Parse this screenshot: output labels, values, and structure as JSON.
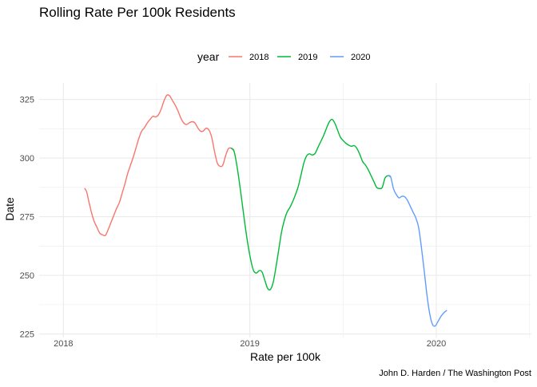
{
  "chart_data": {
    "type": "line",
    "title": "Rolling Rate Per 100k Residents",
    "xlabel": "Rate per 100k",
    "ylabel": "Date",
    "caption": "John D. Harden / The Washington Post",
    "legend_title": "year",
    "legend_position": "top",
    "grid": true,
    "xlim": [
      2017.87,
      2020.51
    ],
    "ylim": [
      223.5,
      332
    ],
    "x_ticks": [
      2018,
      2019,
      2020
    ],
    "x_tick_labels": [
      "2018",
      "2019",
      "2020"
    ],
    "y_ticks": [
      225,
      250,
      275,
      300,
      325
    ],
    "y_tick_labels": [
      "225",
      "250",
      "275",
      "300",
      "325"
    ],
    "colors": {
      "2018": "#F8766D",
      "2019": "#00BA38",
      "2020": "#619CFF",
      "grid": "#ebebeb"
    },
    "series": [
      {
        "name": "2018",
        "color": "#F8766D",
        "points": [
          [
            2018.115,
            287.0
          ],
          [
            2018.125,
            285.5
          ],
          [
            2018.135,
            282.0
          ],
          [
            2018.15,
            277.0
          ],
          [
            2018.165,
            273.0
          ],
          [
            2018.18,
            270.5
          ],
          [
            2018.195,
            268.0
          ],
          [
            2018.21,
            267.3
          ],
          [
            2018.225,
            267.0
          ],
          [
            2018.24,
            269.5
          ],
          [
            2018.255,
            272.5
          ],
          [
            2018.27,
            275.5
          ],
          [
            2018.285,
            278.5
          ],
          [
            2018.3,
            281.0
          ],
          [
            2018.315,
            285.0
          ],
          [
            2018.33,
            289.0
          ],
          [
            2018.345,
            293.5
          ],
          [
            2018.36,
            297.0
          ],
          [
            2018.375,
            300.5
          ],
          [
            2018.39,
            304.5
          ],
          [
            2018.405,
            308.5
          ],
          [
            2018.42,
            311.5
          ],
          [
            2018.435,
            313.0
          ],
          [
            2018.45,
            315.0
          ],
          [
            2018.465,
            316.5
          ],
          [
            2018.48,
            317.8
          ],
          [
            2018.495,
            317.5
          ],
          [
            2018.51,
            318.5
          ],
          [
            2018.525,
            321.0
          ],
          [
            2018.54,
            324.5
          ],
          [
            2018.555,
            326.8
          ],
          [
            2018.57,
            326.5
          ],
          [
            2018.585,
            324.5
          ],
          [
            2018.6,
            322.5
          ],
          [
            2018.615,
            320.0
          ],
          [
            2018.63,
            317.0
          ],
          [
            2018.645,
            315.0
          ],
          [
            2018.66,
            314.3
          ],
          [
            2018.675,
            315.0
          ],
          [
            2018.69,
            315.5
          ],
          [
            2018.705,
            315.0
          ],
          [
            2018.72,
            313.0
          ],
          [
            2018.735,
            311.5
          ],
          [
            2018.75,
            311.5
          ],
          [
            2018.765,
            312.7
          ],
          [
            2018.78,
            312.0
          ],
          [
            2018.795,
            309.0
          ],
          [
            2018.81,
            303.0
          ],
          [
            2018.825,
            298.0
          ],
          [
            2018.84,
            296.5
          ],
          [
            2018.855,
            297.0
          ],
          [
            2018.87,
            301.0
          ],
          [
            2018.885,
            304.0
          ],
          [
            2018.9,
            304.2
          ],
          [
            2018.915,
            303.0
          ]
        ]
      },
      {
        "name": "2019",
        "color": "#00BA38",
        "points": [
          [
            2018.9,
            304.2
          ],
          [
            2018.915,
            303.0
          ],
          [
            2018.93,
            297.0
          ],
          [
            2018.945,
            289.0
          ],
          [
            2018.96,
            280.0
          ],
          [
            2018.975,
            271.0
          ],
          [
            2018.99,
            263.0
          ],
          [
            2019.005,
            256.5
          ],
          [
            2019.02,
            252.0
          ],
          [
            2019.035,
            251.0
          ],
          [
            2019.05,
            252.0
          ],
          [
            2019.065,
            251.5
          ],
          [
            2019.08,
            248.0
          ],
          [
            2019.095,
            244.5
          ],
          [
            2019.11,
            244.0
          ],
          [
            2019.125,
            247.0
          ],
          [
            2019.14,
            253.5
          ],
          [
            2019.155,
            261.0
          ],
          [
            2019.17,
            268.5
          ],
          [
            2019.185,
            273.5
          ],
          [
            2019.2,
            277.0
          ],
          [
            2019.215,
            279.0
          ],
          [
            2019.23,
            281.5
          ],
          [
            2019.245,
            284.5
          ],
          [
            2019.26,
            288.0
          ],
          [
            2019.275,
            293.0
          ],
          [
            2019.29,
            298.0
          ],
          [
            2019.305,
            301.0
          ],
          [
            2019.32,
            301.8
          ],
          [
            2019.335,
            301.3
          ],
          [
            2019.35,
            302.0
          ],
          [
            2019.365,
            304.5
          ],
          [
            2019.38,
            307.0
          ],
          [
            2019.395,
            309.5
          ],
          [
            2019.41,
            312.5
          ],
          [
            2019.425,
            315.3
          ],
          [
            2019.44,
            316.5
          ],
          [
            2019.455,
            315.0
          ],
          [
            2019.47,
            312.0
          ],
          [
            2019.485,
            309.0
          ],
          [
            2019.5,
            307.5
          ],
          [
            2019.515,
            306.3
          ],
          [
            2019.53,
            305.5
          ],
          [
            2019.545,
            305.0
          ],
          [
            2019.56,
            305.3
          ],
          [
            2019.575,
            304.0
          ],
          [
            2019.59,
            301.5
          ],
          [
            2019.605,
            298.5
          ],
          [
            2019.62,
            297.0
          ],
          [
            2019.635,
            295.0
          ],
          [
            2019.65,
            292.5
          ],
          [
            2019.665,
            290.0
          ],
          [
            2019.68,
            287.5
          ],
          [
            2019.695,
            287.0
          ],
          [
            2019.71,
            287.5
          ],
          [
            2019.725,
            291.5
          ],
          [
            2019.74,
            292.5
          ],
          [
            2019.755,
            292.0
          ]
        ]
      },
      {
        "name": "2020",
        "color": "#619CFF",
        "points": [
          [
            2019.74,
            292.5
          ],
          [
            2019.755,
            292.0
          ],
          [
            2019.77,
            287.0
          ],
          [
            2019.785,
            284.5
          ],
          [
            2019.8,
            283.0
          ],
          [
            2019.815,
            283.7
          ],
          [
            2019.83,
            283.5
          ],
          [
            2019.845,
            282.0
          ],
          [
            2019.86,
            279.5
          ],
          [
            2019.875,
            277.0
          ],
          [
            2019.89,
            274.5
          ],
          [
            2019.905,
            270.5
          ],
          [
            2019.92,
            262.0
          ],
          [
            2019.935,
            252.0
          ],
          [
            2019.95,
            241.5
          ],
          [
            2019.965,
            233.5
          ],
          [
            2019.98,
            229.0
          ],
          [
            2019.995,
            228.5
          ],
          [
            2020.01,
            230.5
          ],
          [
            2020.025,
            232.5
          ],
          [
            2020.04,
            234.0
          ],
          [
            2020.055,
            235.0
          ]
        ]
      }
    ]
  }
}
